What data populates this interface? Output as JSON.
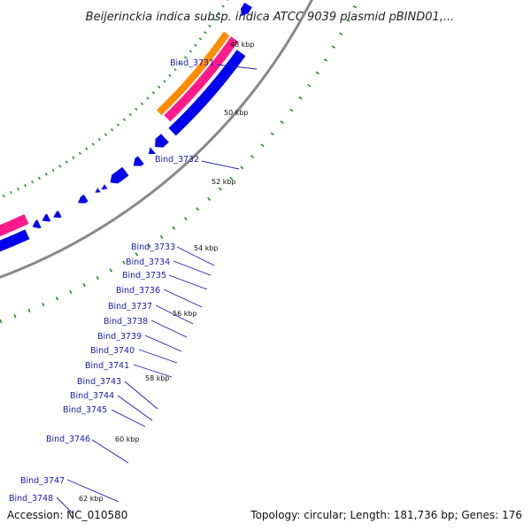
{
  "title": "Beijerinckia indica subsp. indica ATCC 9039 plasmid pBIND01,...",
  "footer": {
    "accession": "Accession: NC_010580",
    "summary": "Topology: circular; Length: 181,736 bp; Genes: 176"
  },
  "kbp_labels": [
    "48 kbp",
    "50 kbp",
    "52 kbp",
    "54 kbp",
    "56 kbp",
    "58 kbp",
    "60 kbp",
    "62 kbp"
  ],
  "gene_labels": [
    "Bind_3731",
    "Bind_3732",
    "Bind_3733",
    "Bind_3734",
    "Bind_3735",
    "Bind_3736",
    "Bind_3737",
    "Bind_3738",
    "Bind_3739",
    "Bind_3740",
    "Bind_3741",
    "Bind_3743",
    "Bind_3744",
    "Bind_3745",
    "Bind_3746",
    "Bind_3747",
    "Bind_3748"
  ],
  "colors": {
    "cds": "#0000ee",
    "trna_orange": "#ff8c00",
    "pink": "#ff1a8c",
    "backbone": "#888888",
    "tick": "#228b22",
    "label": "#1a1ab0",
    "leader": "#1a1ab0"
  }
}
